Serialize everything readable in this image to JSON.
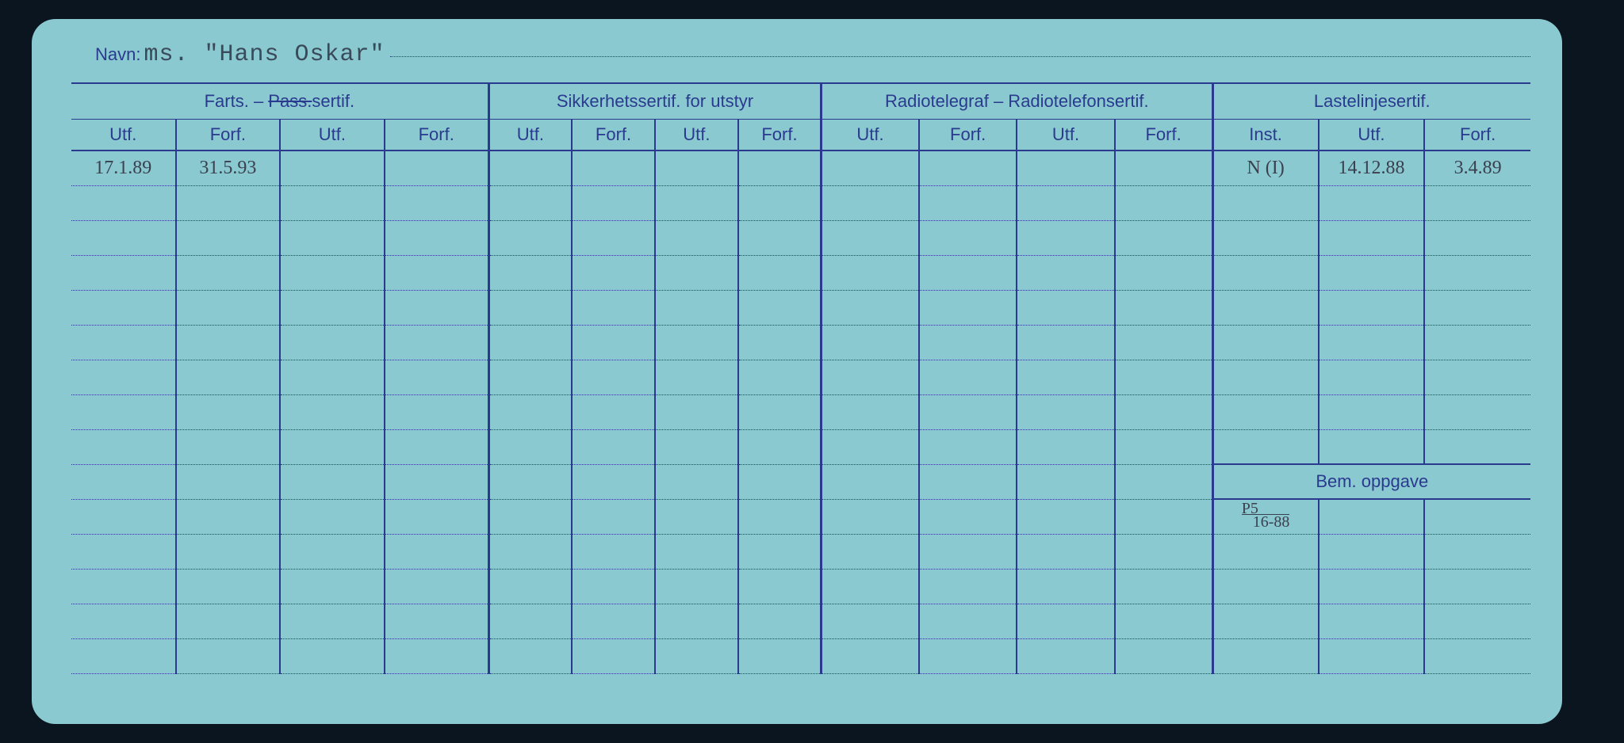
{
  "card": {
    "name_label": "Navn:",
    "name_value": "ms. \"Hans Oskar\"",
    "background_color": "#8bc9d0",
    "line_color": "#2a3a8f",
    "handwriting_color": "#3a4050"
  },
  "groups": [
    {
      "label_pre": "Farts. – ",
      "label_strike": "Pass.",
      "label_post": "sertif.",
      "span": 4
    },
    {
      "label": "Sikkerhetssertif. for utstyr",
      "span": 4
    },
    {
      "label": "Radiotelegraf – Radiotelefonsertif.",
      "span": 4
    },
    {
      "label": "Lastelinjesertif.",
      "span": 3
    }
  ],
  "sub_headers": [
    "Utf.",
    "Forf.",
    "Utf.",
    "Forf.",
    "Utf.",
    "Forf.",
    "Utf.",
    "Forf.",
    "Utf.",
    "Forf.",
    "Utf.",
    "Forf.",
    "Inst.",
    "Utf.",
    "Forf."
  ],
  "column_widths_pct": [
    6.4,
    6.4,
    6.4,
    6.4,
    5.1,
    5.1,
    5.1,
    5.1,
    6.0,
    6.0,
    6.0,
    6.0,
    6.5,
    6.5,
    6.5
  ],
  "rows_top": [
    [
      "17.1.89",
      "31.5.93",
      "",
      "",
      "",
      "",
      "",
      "",
      "",
      "",
      "",
      "",
      "N (I)",
      "14.12.88",
      "3.4.89"
    ],
    [
      "",
      "",
      "",
      "",
      "",
      "",
      "",
      "",
      "",
      "",
      "",
      "",
      "",
      "",
      ""
    ],
    [
      "",
      "",
      "",
      "",
      "",
      "",
      "",
      "",
      "",
      "",
      "",
      "",
      "",
      "",
      ""
    ],
    [
      "",
      "",
      "",
      "",
      "",
      "",
      "",
      "",
      "",
      "",
      "",
      "",
      "",
      "",
      ""
    ],
    [
      "",
      "",
      "",
      "",
      "",
      "",
      "",
      "",
      "",
      "",
      "",
      "",
      "",
      "",
      ""
    ],
    [
      "",
      "",
      "",
      "",
      "",
      "",
      "",
      "",
      "",
      "",
      "",
      "",
      "",
      "",
      ""
    ],
    [
      "",
      "",
      "",
      "",
      "",
      "",
      "",
      "",
      "",
      "",
      "",
      "",
      "",
      "",
      ""
    ],
    [
      "",
      "",
      "",
      "",
      "",
      "",
      "",
      "",
      "",
      "",
      "",
      "",
      "",
      "",
      ""
    ],
    [
      "",
      "",
      "",
      "",
      "",
      "",
      "",
      "",
      "",
      "",
      "",
      "",
      "",
      "",
      ""
    ]
  ],
  "section_label": "Bem. oppgave",
  "rows_bottom": [
    [
      "",
      "",
      "",
      "",
      "",
      "",
      "",
      "",
      "",
      "",
      "",
      "",
      "P5/16-88",
      "",
      ""
    ],
    [
      "",
      "",
      "",
      "",
      "",
      "",
      "",
      "",
      "",
      "",
      "",
      "",
      "",
      "",
      ""
    ],
    [
      "",
      "",
      "",
      "",
      "",
      "",
      "",
      "",
      "",
      "",
      "",
      "",
      "",
      "",
      ""
    ],
    [
      "",
      "",
      "",
      "",
      "",
      "",
      "",
      "",
      "",
      "",
      "",
      "",
      "",
      "",
      ""
    ],
    [
      "",
      "",
      "",
      "",
      "",
      "",
      "",
      "",
      "",
      "",
      "",
      "",
      "",
      "",
      ""
    ]
  ],
  "holes_count": 12
}
